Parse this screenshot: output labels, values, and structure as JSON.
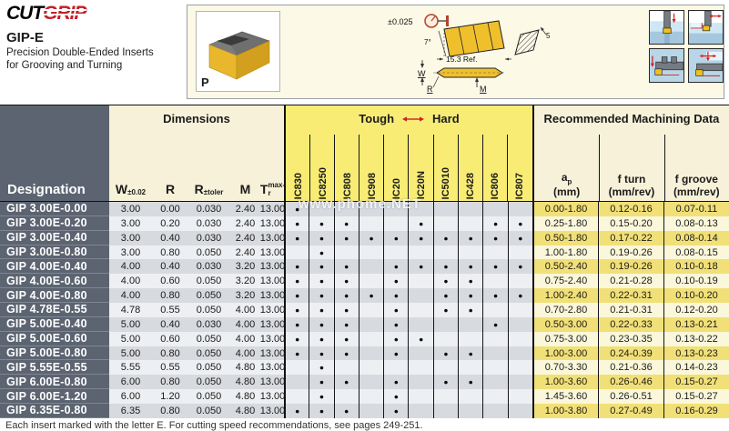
{
  "logo": {
    "part1": "CUT",
    "part2": "GRIP"
  },
  "header": {
    "series": "GIP-E",
    "desc1": "Precision Double-Ended Inserts",
    "desc2": "for Grooving and Turning",
    "photo_label": "P",
    "drawing": {
      "tolerance": "±0.025",
      "angle": "7°",
      "ref": "15.3 Ref.",
      "t_dim": "5",
      "w_label": "W",
      "r_label": "R",
      "m_label": "M"
    }
  },
  "watermark": "www.phome.NET",
  "table": {
    "designation_header": "Designation",
    "dimensions_title": "Dimensions",
    "grades_title": {
      "left": "Tough",
      "right": "Hard"
    },
    "machining_title": "Recommended  Machining Data",
    "dim_columns": [
      {
        "base": "W",
        "sup": "±0.02",
        "sub": ""
      },
      {
        "base": "R",
        "sup": "",
        "sub": ""
      },
      {
        "base": "R",
        "sup": "±toler",
        "sub": ""
      },
      {
        "base": "M",
        "sup": "",
        "sub": ""
      },
      {
        "base": "T",
        "sup": "",
        "sub": "max-r"
      }
    ],
    "grade_columns": [
      "IC830",
      "IC8250",
      "IC808",
      "IC908",
      "IC20",
      "IC20N",
      "IC5010",
      "IC428",
      "IC806",
      "IC807"
    ],
    "machining_columns": [
      {
        "base": "a",
        "sub": "p",
        "unit": "(mm)"
      },
      {
        "base": "f turn",
        "sub": "",
        "unit": "(mm/rev)"
      },
      {
        "base": "f groove",
        "sub": "",
        "unit": "(mm/rev)"
      }
    ],
    "rows": [
      {
        "designation": "GIP 3.00E-0.00",
        "dims": [
          "3.00",
          "0.00",
          "0.030",
          "2.40",
          "13.00"
        ],
        "grades": [
          1,
          0,
          0,
          0,
          0,
          0,
          0,
          0,
          0,
          0
        ],
        "machining": [
          "0.00-1.80",
          "0.12-0.16",
          "0.07-0.11"
        ]
      },
      {
        "designation": "GIP 3.00E-0.20",
        "dims": [
          "3.00",
          "0.20",
          "0.030",
          "2.40",
          "13.00"
        ],
        "grades": [
          1,
          1,
          1,
          0,
          0,
          1,
          0,
          0,
          1,
          1
        ],
        "machining": [
          "0.25-1.80",
          "0.15-0.20",
          "0.08-0.13"
        ]
      },
      {
        "designation": "GIP 3.00E-0.40",
        "dims": [
          "3.00",
          "0.40",
          "0.030",
          "2.40",
          "13.00"
        ],
        "grades": [
          1,
          1,
          1,
          1,
          1,
          1,
          1,
          1,
          1,
          1
        ],
        "machining": [
          "0.50-1.80",
          "0.17-0.22",
          "0.08-0.14"
        ]
      },
      {
        "designation": "GIP 3.00E-0.80",
        "dims": [
          "3.00",
          "0.80",
          "0.050",
          "2.40",
          "13.00"
        ],
        "grades": [
          0,
          1,
          0,
          0,
          0,
          0,
          0,
          0,
          0,
          0
        ],
        "machining": [
          "1.00-1.80",
          "0.19-0.26",
          "0.08-0.15"
        ]
      },
      {
        "designation": "GIP 4.00E-0.40",
        "dims": [
          "4.00",
          "0.40",
          "0.030",
          "3.20",
          "13.00"
        ],
        "grades": [
          1,
          1,
          1,
          0,
          1,
          1,
          1,
          1,
          1,
          1
        ],
        "machining": [
          "0.50-2.40",
          "0.19-0.26",
          "0.10-0.18"
        ]
      },
      {
        "designation": "GIP 4.00E-0.60",
        "dims": [
          "4.00",
          "0.60",
          "0.050",
          "3.20",
          "13.00"
        ],
        "grades": [
          1,
          1,
          1,
          0,
          1,
          0,
          1,
          1,
          0,
          0
        ],
        "machining": [
          "0.75-2.40",
          "0.21-0.28",
          "0.10-0.19"
        ]
      },
      {
        "designation": "GIP 4.00E-0.80",
        "dims": [
          "4.00",
          "0.80",
          "0.050",
          "3.20",
          "13.00"
        ],
        "grades": [
          1,
          1,
          1,
          1,
          1,
          0,
          1,
          1,
          1,
          1
        ],
        "machining": [
          "1.00-2.40",
          "0.22-0.31",
          "0.10-0.20"
        ]
      },
      {
        "designation": "GIP 4.78E-0.55",
        "dims": [
          "4.78",
          "0.55",
          "0.050",
          "4.00",
          "13.00"
        ],
        "grades": [
          1,
          1,
          1,
          0,
          1,
          0,
          1,
          1,
          0,
          0
        ],
        "machining": [
          "0.70-2.80",
          "0.21-0.31",
          "0.12-0.20"
        ]
      },
      {
        "designation": "GIP 5.00E-0.40",
        "dims": [
          "5.00",
          "0.40",
          "0.030",
          "4.00",
          "13.00"
        ],
        "grades": [
          1,
          1,
          1,
          0,
          1,
          0,
          0,
          0,
          1,
          0
        ],
        "machining": [
          "0.50-3.00",
          "0.22-0.33",
          "0.13-0.21"
        ]
      },
      {
        "designation": "GIP 5.00E-0.60",
        "dims": [
          "5.00",
          "0.60",
          "0.050",
          "4.00",
          "13.00"
        ],
        "grades": [
          1,
          1,
          1,
          0,
          1,
          1,
          0,
          0,
          0,
          0
        ],
        "machining": [
          "0.75-3.00",
          "0.23-0.35",
          "0.13-0.22"
        ]
      },
      {
        "designation": "GIP 5.00E-0.80",
        "dims": [
          "5.00",
          "0.80",
          "0.050",
          "4.00",
          "13.00"
        ],
        "grades": [
          1,
          1,
          1,
          0,
          1,
          0,
          1,
          1,
          0,
          0
        ],
        "machining": [
          "1.00-3.00",
          "0.24-0.39",
          "0.13-0.23"
        ]
      },
      {
        "designation": "GIP 5.55E-0.55",
        "dims": [
          "5.55",
          "0.55",
          "0.050",
          "4.80",
          "13.00"
        ],
        "grades": [
          0,
          1,
          0,
          0,
          0,
          0,
          0,
          0,
          0,
          0
        ],
        "machining": [
          "0.70-3.30",
          "0.21-0.36",
          "0.14-0.23"
        ]
      },
      {
        "designation": "GIP 6.00E-0.80",
        "dims": [
          "6.00",
          "0.80",
          "0.050",
          "4.80",
          "13.00"
        ],
        "grades": [
          0,
          1,
          1,
          0,
          1,
          0,
          1,
          1,
          0,
          0
        ],
        "machining": [
          "1.00-3.60",
          "0.26-0.46",
          "0.15-0.27"
        ]
      },
      {
        "designation": "GIP 6.00E-1.20",
        "dims": [
          "6.00",
          "1.20",
          "0.050",
          "4.80",
          "13.00"
        ],
        "grades": [
          0,
          1,
          0,
          0,
          1,
          0,
          0,
          0,
          0,
          0
        ],
        "machining": [
          "1.45-3.60",
          "0.26-0.51",
          "0.15-0.27"
        ]
      },
      {
        "designation": "GIP 6.35E-0.80",
        "dims": [
          "6.35",
          "0.80",
          "0.050",
          "4.80",
          "13.00"
        ],
        "grades": [
          1,
          1,
          1,
          0,
          1,
          0,
          0,
          0,
          0,
          0
        ],
        "machining": [
          "1.00-3.80",
          "0.27-0.49",
          "0.16-0.29"
        ]
      }
    ],
    "bullet": "●"
  },
  "footnote": "Each insert marked with the letter E. For cutting speed recommendations, see pages 249-251."
}
